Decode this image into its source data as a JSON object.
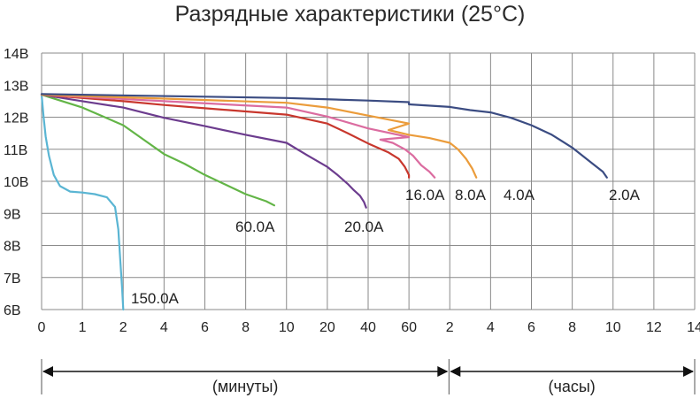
{
  "chart_data": {
    "type": "line",
    "title": "Разрядные характеристики (25°C)",
    "y_ticks": [
      "6В",
      "7В",
      "8В",
      "9В",
      "10В",
      "11В",
      "12В",
      "13В",
      "14В"
    ],
    "ylim": [
      6,
      14
    ],
    "x_ticks": [
      "0",
      "1",
      "2",
      "4",
      "6",
      "8",
      "10",
      "20",
      "40",
      "60",
      "2",
      "4",
      "6",
      "8",
      "10",
      "12",
      "14"
    ],
    "x_spans": [
      {
        "label": "(минуты)"
      },
      {
        "label": "(часы)"
      }
    ],
    "grid": true,
    "series": [
      {
        "name": "150.0A",
        "color": "#5ab5d3",
        "points": [
          [
            0,
            12.7
          ],
          [
            0.05,
            12.0
          ],
          [
            0.1,
            11.4
          ],
          [
            0.18,
            10.8
          ],
          [
            0.3,
            10.2
          ],
          [
            0.45,
            9.85
          ],
          [
            0.7,
            9.68
          ],
          [
            1.0,
            9.65
          ],
          [
            1.3,
            9.6
          ],
          [
            1.6,
            9.5
          ],
          [
            1.8,
            9.2
          ],
          [
            1.88,
            8.5
          ],
          [
            1.93,
            7.5
          ],
          [
            1.97,
            6.7
          ],
          [
            2.0,
            6.0
          ]
        ]
      },
      {
        "name": "60.0A",
        "color": "#63b547",
        "points": [
          [
            0,
            12.7
          ],
          [
            1,
            12.3
          ],
          [
            2,
            11.75
          ],
          [
            3,
            11.3
          ],
          [
            4,
            10.85
          ],
          [
            5,
            10.55
          ],
          [
            6,
            10.2
          ],
          [
            7,
            9.9
          ],
          [
            8,
            9.6
          ],
          [
            9,
            9.38
          ],
          [
            9.4,
            9.25
          ]
        ]
      },
      {
        "name": "20.0A",
        "color": "#6c3c8e",
        "points": [
          [
            0,
            12.7
          ],
          [
            1,
            12.5
          ],
          [
            2,
            12.3
          ],
          [
            4,
            11.98
          ],
          [
            6,
            11.72
          ],
          [
            8,
            11.45
          ],
          [
            10,
            11.2
          ],
          [
            15,
            10.82
          ],
          [
            20,
            10.45
          ],
          [
            25,
            10.2
          ],
          [
            30,
            9.92
          ],
          [
            33,
            9.72
          ],
          [
            36,
            9.55
          ],
          [
            38,
            9.35
          ],
          [
            39,
            9.18
          ]
        ]
      },
      {
        "name": "16.0A",
        "color": "#c8372d",
        "points": [
          [
            0,
            12.7
          ],
          [
            2,
            12.5
          ],
          [
            4,
            12.38
          ],
          [
            6,
            12.28
          ],
          [
            8,
            12.18
          ],
          [
            10,
            12.08
          ],
          [
            20,
            11.8
          ],
          [
            30,
            11.5
          ],
          [
            40,
            11.18
          ],
          [
            50,
            10.9
          ],
          [
            55,
            10.7
          ],
          [
            58,
            10.45
          ],
          [
            60,
            10.2
          ],
          [
            62,
            10.12
          ]
        ]
      },
      {
        "name": "8.0A",
        "color": "#db6ca0",
        "points": [
          [
            0,
            12.7
          ],
          [
            4,
            12.5
          ],
          [
            10,
            12.3
          ],
          [
            20,
            12.02
          ],
          [
            40,
            11.65
          ],
          [
            60,
            11.38
          ],
          [
            0.3,
            11.3
          ],
          [
            0.6,
            11.2
          ],
          [
            0.9,
            11.0
          ],
          [
            1.1,
            10.8
          ],
          [
            1.3,
            10.5
          ],
          [
            1.5,
            10.3
          ],
          [
            1.63,
            10.12
          ]
        ]
      },
      {
        "name": "4.0A",
        "color": "#eb9c3b",
        "points": [
          [
            0,
            12.7
          ],
          [
            4,
            12.58
          ],
          [
            10,
            12.45
          ],
          [
            20,
            12.3
          ],
          [
            40,
            12.05
          ],
          [
            60,
            11.8
          ],
          [
            0.5,
            11.6
          ],
          [
            1.0,
            11.45
          ],
          [
            1.5,
            11.35
          ],
          [
            2.0,
            11.2
          ],
          [
            2.4,
            11.0
          ],
          [
            2.8,
            10.7
          ],
          [
            3.1,
            10.4
          ],
          [
            3.3,
            10.12
          ]
        ]
      },
      {
        "name": "2.0A",
        "color": "#3b4c82",
        "points": [
          [
            0,
            12.72
          ],
          [
            10,
            12.6
          ],
          [
            40,
            12.52
          ],
          [
            60,
            12.47
          ],
          [
            1,
            12.4
          ],
          [
            2,
            12.32
          ],
          [
            3,
            12.22
          ],
          [
            4,
            12.15
          ],
          [
            5,
            11.98
          ],
          [
            6,
            11.75
          ],
          [
            7,
            11.45
          ],
          [
            8,
            11.05
          ],
          [
            9,
            10.55
          ],
          [
            9.5,
            10.3
          ],
          [
            9.7,
            10.12
          ]
        ]
      }
    ]
  }
}
